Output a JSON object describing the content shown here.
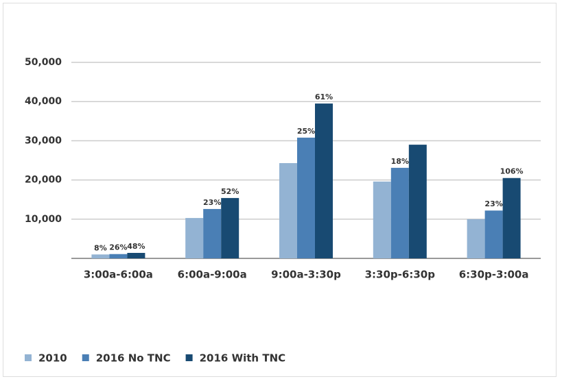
{
  "chart_data": {
    "type": "bar",
    "categories": [
      "3:00a-6:00a",
      "6:00a-9:00a",
      "9:00a-3:30p",
      "3:30p-6:30p",
      "6:30p-3:00a"
    ],
    "series": [
      {
        "name": "2010",
        "color": "#93b3d3",
        "values": [
          1000,
          10300,
          24300,
          19600,
          10000
        ],
        "annotations": [
          "8%",
          null,
          null,
          null,
          null
        ]
      },
      {
        "name": "2016 No TNC",
        "color": "#4a7fb5",
        "values": [
          1100,
          12600,
          30800,
          23100,
          12200
        ],
        "annotations": [
          "26%",
          "23%",
          "25%",
          "18%",
          "23%"
        ]
      },
      {
        "name": "2016 With TNC",
        "color": "#184a72",
        "values": [
          1400,
          15400,
          39500,
          29000,
          20500
        ],
        "annotations": [
          "48%",
          "52%",
          "61%",
          null,
          "106%"
        ]
      }
    ],
    "ylim": [
      0,
      50000
    ],
    "yticks": [
      {
        "value": 10000,
        "label": "10,000"
      },
      {
        "value": 20000,
        "label": "20,000"
      },
      {
        "value": 30000,
        "label": "30,000"
      },
      {
        "value": 40000,
        "label": "40,000"
      },
      {
        "value": 50000,
        "label": "50,000"
      }
    ],
    "grid": true,
    "legend": "bottom-left"
  }
}
